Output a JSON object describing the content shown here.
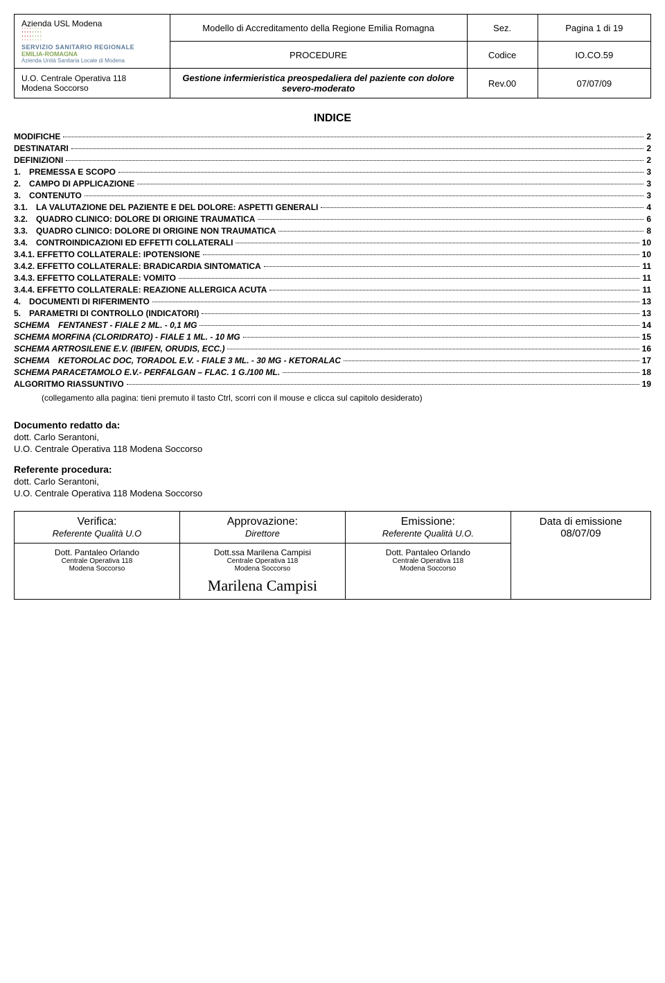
{
  "header": {
    "org": "Azienda USL Modena",
    "logo_line1": "SERVIZIO SANITARIO REGIONALE",
    "logo_line2": "EMILIA-ROMAGNA",
    "logo_line3": "Azienda Unità Sanitaria Locale di Modena",
    "title_top": "Modello di Accreditamento della Regione Emilia Romagna",
    "title_bottom": "PROCEDURE",
    "sez": "Sez.",
    "codice": "Codice",
    "pagina": "Pagina 1 di 19",
    "code_val": "IO.CO.59",
    "unit1": "U.O. Centrale Operativa 118",
    "unit2": "Modena Soccorso",
    "doc_title": "Gestione infermieristica preospedaliera del paziente con dolore severo-moderato",
    "rev": "Rev.00",
    "date": "07/07/09"
  },
  "indice": "INDICE",
  "toc": [
    {
      "label": "MODIFICHE",
      "page": "2",
      "italic": false
    },
    {
      "label": "DESTINATARI",
      "page": "2",
      "italic": false
    },
    {
      "label": "DEFINIZIONI",
      "page": "2",
      "italic": false
    },
    {
      "label": "1. PREMESSA E SCOPO",
      "page": "3",
      "italic": false
    },
    {
      "label": "2. CAMPO DI APPLICAZIONE",
      "page": "3",
      "italic": false
    },
    {
      "label": "3. CONTENUTO",
      "page": "3",
      "italic": false
    },
    {
      "label": "3.1. LA VALUTAZIONE DEL PAZIENTE E DEL DOLORE: ASPETTI GENERALI",
      "page": "4",
      "italic": false
    },
    {
      "label": "3.2. QUADRO CLINICO: DOLORE DI ORIGINE TRAUMATICA",
      "page": "6",
      "italic": false
    },
    {
      "label": "3.3. QUADRO CLINICO: DOLORE DI ORIGINE NON TRAUMATICA",
      "page": "8",
      "italic": false
    },
    {
      "label": "3.4. CONTROINDICAZIONI ED EFFETTI COLLATERALI",
      "page": "10",
      "italic": false
    },
    {
      "label": "3.4.1. EFFETTO COLLATERALE: IPOTENSIONE",
      "page": "10",
      "italic": false
    },
    {
      "label": "3.4.2. EFFETTO COLLATERALE: BRADICARDIA SINTOMATICA",
      "page": "11",
      "italic": false
    },
    {
      "label": "3.4.3. EFFETTO COLLATERALE: VOMITO",
      "page": "11",
      "italic": false
    },
    {
      "label": "3.4.4. EFFETTO COLLATERALE: REAZIONE ALLERGICA ACUTA",
      "page": "11",
      "italic": false
    },
    {
      "label": "4. DOCUMENTI DI RIFERIMENTO",
      "page": "13",
      "italic": false
    },
    {
      "label": "5. PARAMETRI DI CONTROLLO (INDICATORI)",
      "page": "13",
      "italic": false
    },
    {
      "label": "SCHEMA FENTANEST - FIALE 2 ML. - 0,1 MG",
      "page": "14",
      "italic": true
    },
    {
      "label": "SCHEMA MORFINA (CLORIDRATO) - FIALE 1 ML. - 10 MG",
      "page": "15",
      "italic": true
    },
    {
      "label": "SCHEMA ARTROSILENE E.V.  (IBIFEN, ORUDIS, ECC.)",
      "page": "16",
      "italic": true
    },
    {
      "label": "SCHEMA KETOROLAC DOC, TORADOL E.V. - FIALE 3 ML. - 30 MG  - KETORALAC",
      "page": "17",
      "italic": true
    },
    {
      "label": "SCHEMA PARACETAMOLO E.V.- PERFALGAN – FLAC. 1 G./100 ML.",
      "page": "18",
      "italic": true
    },
    {
      "label": "ALGORITMO RIASSUNTIVO",
      "page": "19",
      "italic": false
    }
  ],
  "toc_note": "(collegamento alla pagina: tieni premuto il tasto Ctrl, scorri con il mouse e clicca sul capitolo desiderato)",
  "authors": {
    "redatto_h": "Documento redatto da:",
    "redatto_1": "dott. Carlo Serantoni,",
    "redatto_2": "U.O. Centrale Operativa 118 Modena Soccorso",
    "referente_h": "Referente procedura:",
    "referente_1": "dott. Carlo Serantoni,",
    "referente_2": "U.O. Centrale Operativa 118 Modena Soccorso"
  },
  "sig": {
    "h1": "Verifica:",
    "h2": "Approvazione:",
    "h3": "Emissione:",
    "s1": "Referente Qualità U.O",
    "s2": "Direttore",
    "s3": "Referente Qualità U.O.",
    "date_label": "Data di emissione",
    "date_val": "08/07/09",
    "n1": "Dott. Pantaleo Orlando",
    "n2": "Dott.ssa Marilena Campisi",
    "n3": "Dott. Pantaleo Orlando",
    "unit_a": "Centrale Operativa 118",
    "unit_b": "Modena Soccorso",
    "signature": "Marilena Campisi"
  }
}
